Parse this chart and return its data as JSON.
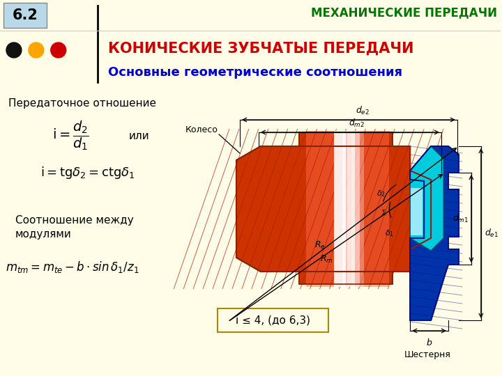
{
  "bg_color": "#FFFCE8",
  "title_number": "6.2",
  "title_number_bg": "#B8D9E8",
  "top_right_text": "МЕХАНИЧЕСКИЕ ПЕРЕДАЧИ",
  "top_right_color": "#007700",
  "main_title": "КОНИЧЕСКИЕ ЗУБЧАТЫЕ ПЕРЕДАЧИ",
  "main_title_color": "#CC0000",
  "subtitle": "Основные геометрические соотношения",
  "subtitle_color": "#0000CC",
  "text1": "Передаточное отношение",
  "ili_text": "или",
  "text2_line1": "Соотношение между",
  "text2_line2": "модулями",
  "note_text": "i ≤ 4, (до 6,3)",
  "dot_colors": [
    "#111111",
    "#FFA500",
    "#CC0000"
  ],
  "koleso_text": "Колесо",
  "shesternya_text": "Шестерня",
  "wheel_color_dark": "#CC3300",
  "wheel_color_mid": "#DD4400",
  "wheel_color_light": "#FF8866",
  "wheel_color_bright": "#FFDDCC",
  "pinion_color_dark": "#0033AA",
  "pinion_color_mid": "#0055CC",
  "pinion_color_cyan": "#00CCDD",
  "pinion_color_light": "#AAEEFF",
  "line_color": "#000000"
}
